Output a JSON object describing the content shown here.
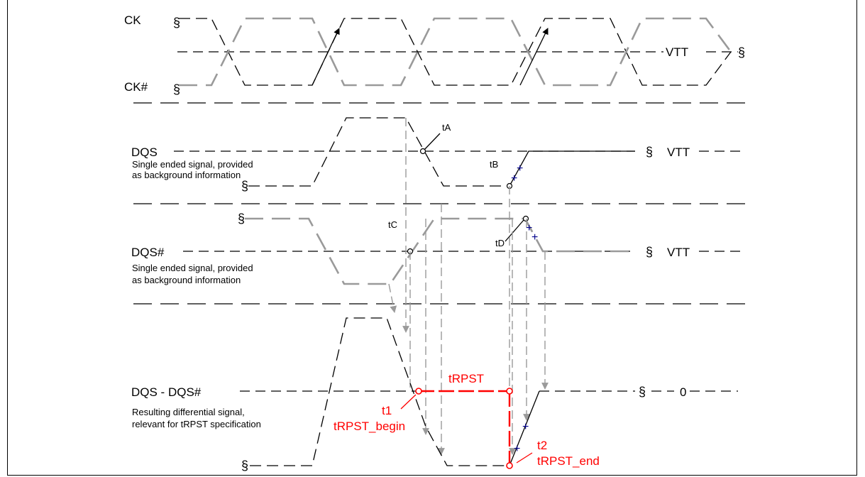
{
  "signals": {
    "ck": "CK",
    "ck_n": "CK#",
    "dqs": "DQS",
    "dqs_n": "DQS#",
    "diff": "DQS - DQS#"
  },
  "notes": {
    "dqs_line1": "Single ended signal, provided",
    "dqs_line2": "as background information",
    "dqs_n_line1": "Single ended signal, provided",
    "dqs_n_line2": "as background information",
    "diff_line1": "Resulting differential signal,",
    "diff_line2": "relevant for tRPST specification"
  },
  "levels": {
    "vtt_ck": "VTT",
    "vtt_dqs": "VTT",
    "vtt_dqs_n": "VTT",
    "zero": "0"
  },
  "points": {
    "ta": "tA",
    "tb": "tB",
    "tc": "tC",
    "td": "tD"
  },
  "timing": {
    "trpst": "tRPST",
    "t1": "t1",
    "trpst_begin": "tRPST_begin",
    "t2": "t2",
    "trpst_end": "tRPST_end"
  },
  "colors": {
    "black_signal": "#000000",
    "gray_signal": "#9a9a9a",
    "marker_red": "#ff0000",
    "plus_blue": "#00008b"
  }
}
